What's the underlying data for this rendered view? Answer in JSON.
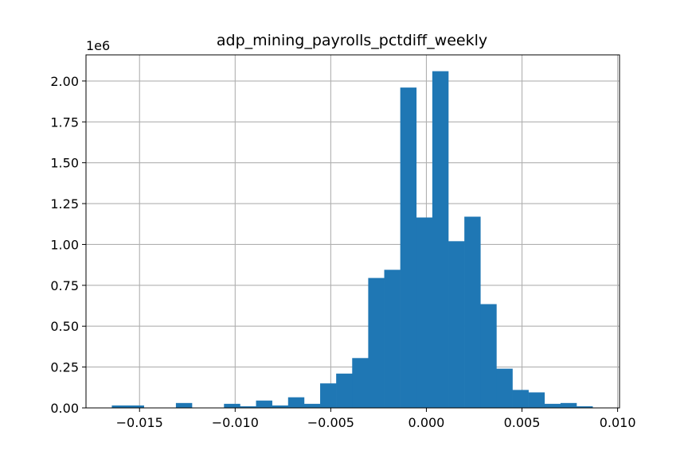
{
  "chart_data": {
    "type": "histogram",
    "title": "adp_mining_payrolls_pctdiff_weekly",
    "xlabel": "",
    "ylabel": "",
    "y_offset_label": "1e6",
    "xlim": [
      -0.0178,
      0.0101
    ],
    "ylim": [
      0,
      2160000
    ],
    "grid": true,
    "bar_color": "#1f77b4",
    "x_ticks": [
      -0.015,
      -0.01,
      -0.005,
      0.0,
      0.005,
      0.01
    ],
    "x_tick_labels": [
      "−0.015",
      "−0.010",
      "−0.005",
      "0.000",
      "0.005",
      "0.010"
    ],
    "y_ticks": [
      0,
      250000,
      500000,
      750000,
      1000000,
      1250000,
      1500000,
      1750000,
      2000000
    ],
    "y_tick_labels": [
      "0.00",
      "0.25",
      "0.50",
      "0.75",
      "1.00",
      "1.25",
      "1.50",
      "1.75",
      "2.00"
    ],
    "bin_start": -0.01645,
    "bin_width": 0.000838,
    "counts": [
      15000,
      15000,
      0,
      0,
      30000,
      0,
      0,
      25000,
      10000,
      45000,
      15000,
      65000,
      25000,
      150000,
      210000,
      305000,
      795000,
      845000,
      1960000,
      1165000,
      2060000,
      1020000,
      1170000,
      635000,
      240000,
      110000,
      95000,
      25000,
      30000,
      10000
    ]
  }
}
